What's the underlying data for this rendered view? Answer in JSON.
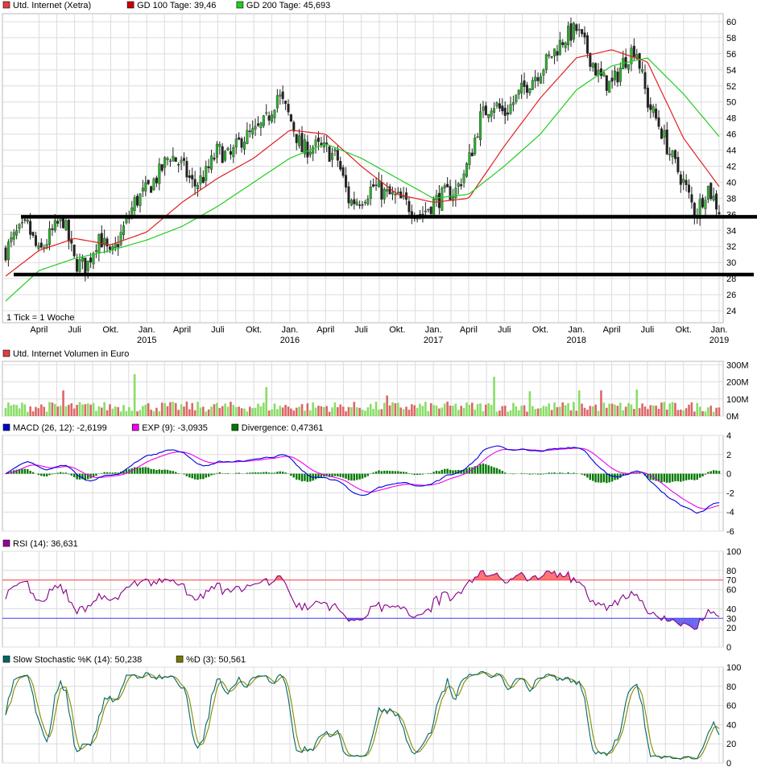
{
  "chart_data": [
    {
      "id": "price",
      "type": "candlestick",
      "legend": [
        {
          "label": "Utd. Internet (Xetra)",
          "color": "#e04040"
        },
        {
          "label": "GD 100 Tage: 39,46",
          "color": "#cc0000"
        },
        {
          "label": "GD 200 Tage: 45,693",
          "color": "#22cc22"
        }
      ],
      "note": "1 Tick = 1 Woche",
      "x_ticks": [
        {
          "label": "April",
          "year": ""
        },
        {
          "label": "Juli",
          "year": ""
        },
        {
          "label": "Okt.",
          "year": ""
        },
        {
          "label": "Jan.",
          "year": "2015"
        },
        {
          "label": "April",
          "year": ""
        },
        {
          "label": "Juli",
          "year": ""
        },
        {
          "label": "Okt.",
          "year": ""
        },
        {
          "label": "Jan.",
          "year": "2016"
        },
        {
          "label": "April",
          "year": ""
        },
        {
          "label": "Juli",
          "year": ""
        },
        {
          "label": "Okt.",
          "year": ""
        },
        {
          "label": "Jan.",
          "year": "2017"
        },
        {
          "label": "April",
          "year": ""
        },
        {
          "label": "Juli",
          "year": ""
        },
        {
          "label": "Okt.",
          "year": ""
        },
        {
          "label": "Jan.",
          "year": "2018"
        },
        {
          "label": "April",
          "year": ""
        },
        {
          "label": "Juli",
          "year": ""
        },
        {
          "label": "Okt.",
          "year": ""
        },
        {
          "label": "Jan.",
          "year": "2019"
        }
      ],
      "y_ticks": [
        "24",
        "26",
        "28",
        "30",
        "32",
        "34",
        "36",
        "38",
        "40",
        "42",
        "44",
        "46",
        "48",
        "50",
        "52",
        "54",
        "56",
        "58",
        "60"
      ],
      "ylim": [
        22.5,
        61
      ],
      "close_anchors": [
        [
          "2014-01-06",
          31.5
        ],
        [
          "2014-02-03",
          33.5
        ],
        [
          "2014-03-03",
          34.5
        ],
        [
          "2014-04-01",
          31.0
        ],
        [
          "2014-05-01",
          33.5
        ],
        [
          "2014-06-01",
          35.5
        ],
        [
          "2014-07-01",
          30.0
        ],
        [
          "2014-08-01",
          29.5
        ],
        [
          "2014-09-01",
          33.5
        ],
        [
          "2014-10-01",
          30.5
        ],
        [
          "2014-11-01",
          34.0
        ],
        [
          "2014-12-01",
          37.5
        ],
        [
          "2015-01-01",
          39.0
        ],
        [
          "2015-02-01",
          41.0
        ],
        [
          "2015-03-01",
          43.5
        ],
        [
          "2015-04-01",
          42.0
        ],
        [
          "2015-05-01",
          39.5
        ],
        [
          "2015-06-01",
          41.0
        ],
        [
          "2015-07-01",
          44.0
        ],
        [
          "2015-08-01",
          43.0
        ],
        [
          "2015-09-01",
          45.5
        ],
        [
          "2015-10-01",
          46.0
        ],
        [
          "2015-11-01",
          47.5
        ],
        [
          "2015-12-01",
          51.0
        ],
        [
          "2016-01-01",
          48.0
        ],
        [
          "2016-02-01",
          44.0
        ],
        [
          "2016-03-01",
          44.5
        ],
        [
          "2016-04-01",
          44.0
        ],
        [
          "2016-05-01",
          43.0
        ],
        [
          "2016-06-01",
          37.5
        ],
        [
          "2016-07-01",
          38.0
        ],
        [
          "2016-08-01",
          39.5
        ],
        [
          "2016-09-01",
          38.5
        ],
        [
          "2016-10-01",
          38.0
        ],
        [
          "2016-11-01",
          37.0
        ],
        [
          "2016-12-01",
          36.0
        ],
        [
          "2017-01-01",
          37.5
        ],
        [
          "2017-02-01",
          38.5
        ],
        [
          "2017-03-01",
          39.0
        ],
        [
          "2017-04-01",
          42.5
        ],
        [
          "2017-05-01",
          48.0
        ],
        [
          "2017-06-01",
          50.0
        ],
        [
          "2017-07-01",
          48.5
        ],
        [
          "2017-08-01",
          50.5
        ],
        [
          "2017-09-01",
          52.5
        ],
        [
          "2017-10-01",
          54.0
        ],
        [
          "2017-11-01",
          56.0
        ],
        [
          "2017-12-01",
          58.0
        ],
        [
          "2018-01-01",
          59.0
        ],
        [
          "2018-02-01",
          56.0
        ],
        [
          "2018-03-01",
          53.0
        ],
        [
          "2018-04-01",
          52.0
        ],
        [
          "2018-05-01",
          55.0
        ],
        [
          "2018-06-01",
          57.0
        ],
        [
          "2018-07-01",
          50.0
        ],
        [
          "2018-08-01",
          47.0
        ],
        [
          "2018-09-01",
          43.0
        ],
        [
          "2018-10-01",
          40.0
        ],
        [
          "2018-11-01",
          36.0
        ],
        [
          "2018-12-01",
          39.5
        ],
        [
          "2018-12-31",
          36.6
        ]
      ],
      "gd100_anchors": [
        [
          "2014-01-06",
          28.3
        ],
        [
          "2014-04-01",
          31.5
        ],
        [
          "2014-07-01",
          33.0
        ],
        [
          "2014-10-01",
          32.2
        ],
        [
          "2015-01-01",
          33.8
        ],
        [
          "2015-04-01",
          37.5
        ],
        [
          "2015-07-01",
          40.5
        ],
        [
          "2015-10-01",
          43.0
        ],
        [
          "2016-01-01",
          46.5
        ],
        [
          "2016-04-01",
          46.0
        ],
        [
          "2016-07-01",
          42.0
        ],
        [
          "2016-10-01",
          38.5
        ],
        [
          "2017-01-01",
          37.5
        ],
        [
          "2017-04-01",
          38.0
        ],
        [
          "2017-07-01",
          44.5
        ],
        [
          "2017-10-01",
          50.5
        ],
        [
          "2018-01-01",
          55.5
        ],
        [
          "2018-04-01",
          56.5
        ],
        [
          "2018-07-01",
          55.0
        ],
        [
          "2018-10-01",
          45.5
        ],
        [
          "2018-12-31",
          39.46
        ]
      ],
      "gd200_anchors": [
        [
          "2014-01-06",
          25.2
        ],
        [
          "2014-04-01",
          29.0
        ],
        [
          "2014-07-01",
          30.5
        ],
        [
          "2014-10-01",
          31.5
        ],
        [
          "2015-01-01",
          32.8
        ],
        [
          "2015-04-01",
          34.5
        ],
        [
          "2015-07-01",
          37.0
        ],
        [
          "2015-10-01",
          40.0
        ],
        [
          "2016-01-01",
          43.0
        ],
        [
          "2016-04-01",
          44.8
        ],
        [
          "2016-07-01",
          43.0
        ],
        [
          "2016-10-01",
          40.5
        ],
        [
          "2017-01-01",
          38.0
        ],
        [
          "2017-04-01",
          38.5
        ],
        [
          "2017-07-01",
          42.0
        ],
        [
          "2017-10-01",
          46.0
        ],
        [
          "2018-01-01",
          51.5
        ],
        [
          "2018-04-01",
          54.5
        ],
        [
          "2018-07-01",
          55.5
        ],
        [
          "2018-10-01",
          51.0
        ],
        [
          "2018-12-31",
          45.693
        ]
      ],
      "support_lines": [
        35.7,
        28.5
      ],
      "colors": {
        "up": "#2db52d",
        "down": "#222222",
        "gd100": "#e02020",
        "gd200": "#22cc22",
        "support": "#000000"
      }
    },
    {
      "id": "volume",
      "type": "bar",
      "legend": [
        {
          "label": "Utd. Internet Volumen in Euro",
          "color": "#e04040"
        }
      ],
      "y_ticks": [
        "0M",
        "100M",
        "200M",
        "300M"
      ],
      "ylim": [
        0,
        320
      ],
      "spikes": [
        [
          "2014-06-02",
          150
        ],
        [
          "2014-12-01",
          245
        ],
        [
          "2015-11-02",
          170
        ],
        [
          "2016-09-05",
          120
        ],
        [
          "2017-06-05",
          230
        ],
        [
          "2017-09-04",
          145
        ],
        [
          "2018-01-08",
          150
        ],
        [
          "2018-03-05",
          150
        ],
        [
          "2018-06-04",
          155
        ]
      ],
      "colors": {
        "up": "#88dd66",
        "down": "#dd6666"
      }
    },
    {
      "id": "macd",
      "type": "line",
      "legend": [
        {
          "label": "MACD (26, 12): -2,6199",
          "color": "#0000cc"
        },
        {
          "label": "EXP (9): -3,0935",
          "color": "#ee00ee"
        },
        {
          "label": "Divergence: 0,47361",
          "color": "#007700"
        }
      ],
      "y_ticks": [
        "-6",
        "-4",
        "-2",
        "0",
        "2",
        "4"
      ],
      "ylim": [
        -6,
        4
      ],
      "colors": {
        "macd": "#0000dd",
        "exp": "#ee00ee",
        "div": "#007700"
      }
    },
    {
      "id": "rsi",
      "type": "line",
      "legend": [
        {
          "label": "RSI (14): 36,631",
          "color": "#990099"
        }
      ],
      "y_ticks": [
        "0",
        "20",
        "30",
        "40",
        "60",
        "70",
        "80",
        "100"
      ],
      "levels": {
        "upper": 70,
        "lower": 30
      },
      "ylim": [
        0,
        100
      ],
      "colors": {
        "line": "#880088",
        "upper": "#ff4444",
        "lower": "#4444ff",
        "upper_fill": "#ff7070",
        "lower_fill": "#6666ee"
      }
    },
    {
      "id": "stoch",
      "type": "line",
      "legend": [
        {
          "label": "Slow Stochastic %K (14): 50,238",
          "color": "#006666"
        },
        {
          "label": "%D (3): 50,561",
          "color": "#777700"
        }
      ],
      "y_ticks": [
        "0",
        "20",
        "40",
        "60",
        "80",
        "100"
      ],
      "ylim": [
        0,
        100
      ],
      "colors": {
        "k": "#006666",
        "d": "#888800"
      }
    }
  ]
}
